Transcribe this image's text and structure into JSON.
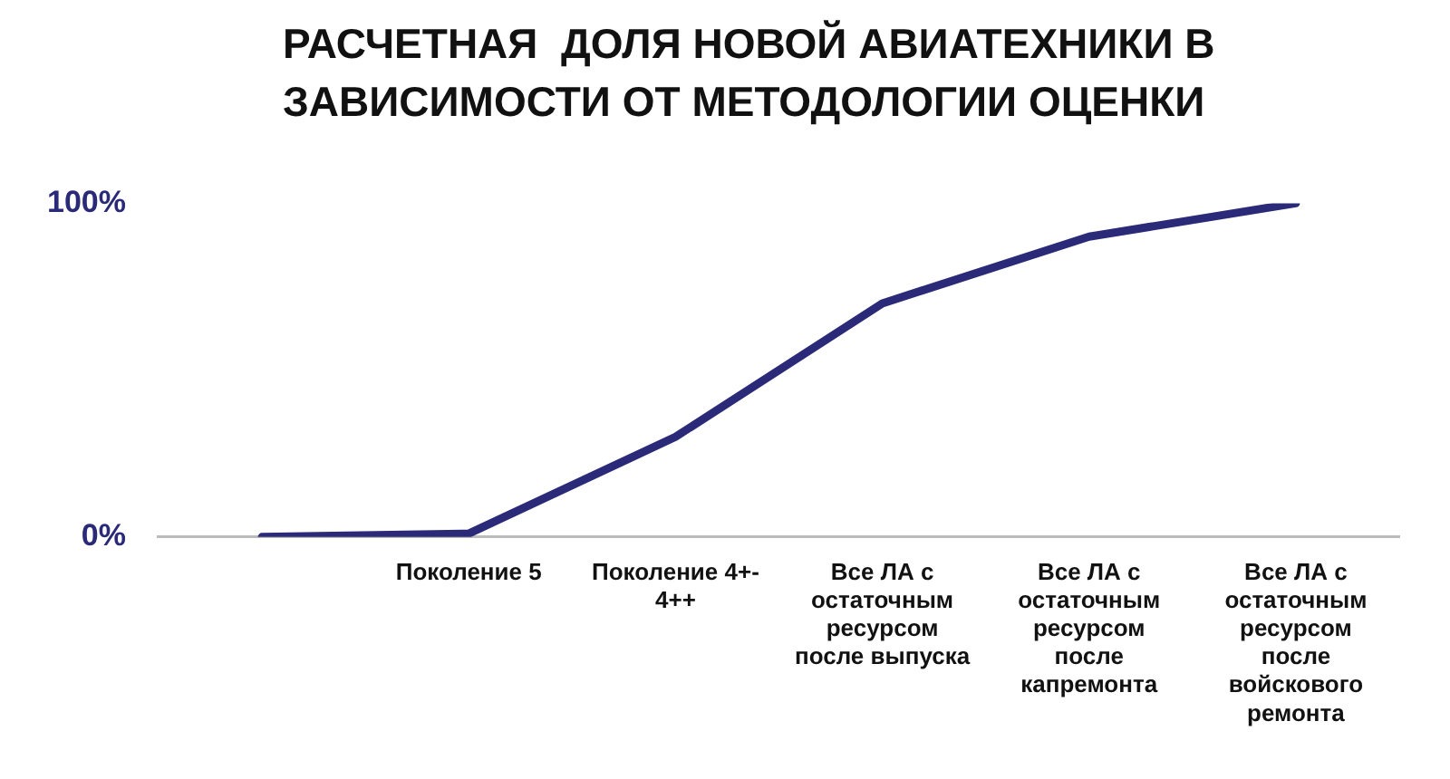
{
  "chart_data": {
    "type": "line",
    "title": "РАСЧЕТНАЯ  ДОЛЯ НОВОЙ АВИАТЕХНИКИ В ЗАВИСИМОСТИ ОТ МЕТОДОЛОГИИ ОЦЕНКИ",
    "categories": [
      null,
      "Поколение 5",
      "Поколение 4+- 4++",
      "Все ЛА с остаточным ресурсом после выпуска",
      "Все ЛА с остаточным ресурсом после капремонта",
      "Все ЛА с остаточным ресурсом после войскового ремонта"
    ],
    "series": [
      {
        "color": "#2b2a78",
        "values": [
          0,
          1,
          30,
          70,
          90,
          100
        ]
      }
    ],
    "ylim": [
      0,
      100
    ],
    "yticks": [
      {
        "value": 0,
        "label": "0%"
      },
      {
        "value": 100,
        "label": "100%"
      }
    ],
    "grid": false,
    "legend": false,
    "marker": "none",
    "line_style": "solid"
  }
}
